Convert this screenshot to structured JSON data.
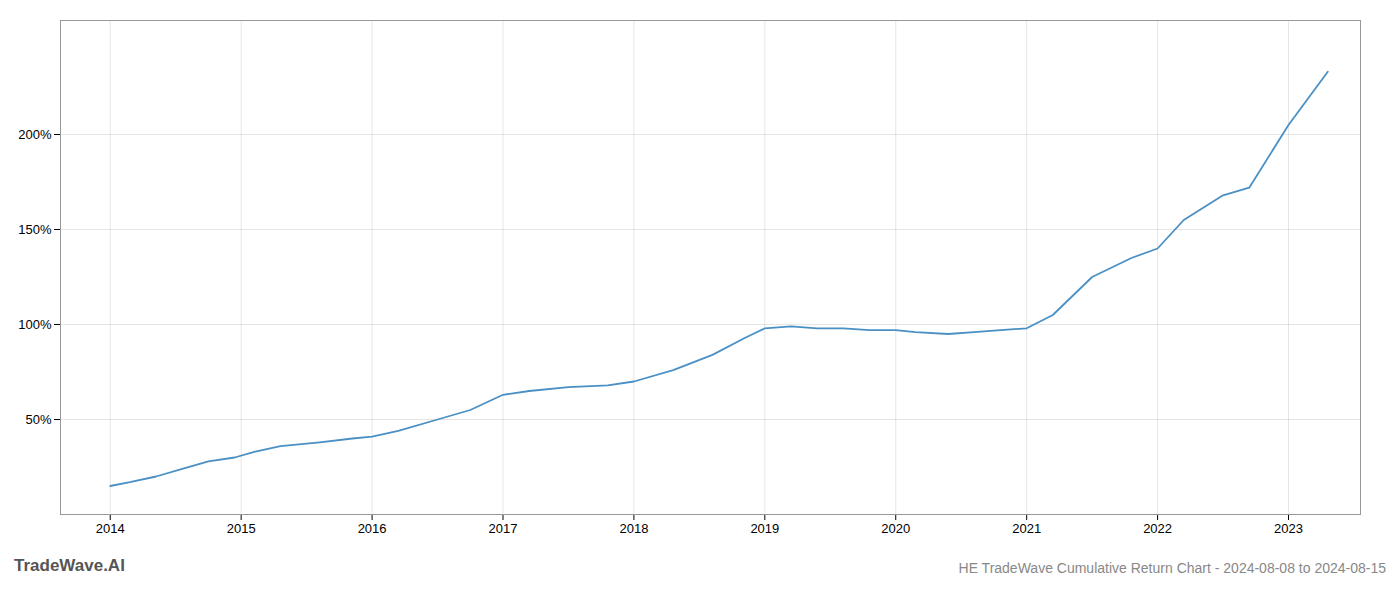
{
  "chart_data": {
    "type": "line",
    "title": "HE TradeWave Cumulative Return Chart - 2024-08-08 to 2024-08-15",
    "annotations": [
      "TradeWave.AI"
    ],
    "x": [
      2014.0,
      2014.15,
      2014.35,
      2014.55,
      2014.75,
      2014.95,
      2015.1,
      2015.3,
      2015.6,
      2015.85,
      2016.0,
      2016.2,
      2016.5,
      2016.75,
      2017.0,
      2017.2,
      2017.5,
      2017.8,
      2018.0,
      2018.3,
      2018.6,
      2018.85,
      2019.0,
      2019.2,
      2019.4,
      2019.6,
      2019.8,
      2020.0,
      2020.15,
      2020.4,
      2020.6,
      2020.8,
      2021.0,
      2021.2,
      2021.5,
      2021.8,
      2022.0,
      2022.2,
      2022.5,
      2022.7,
      2023.0,
      2023.3
    ],
    "values": [
      15,
      17,
      20,
      24,
      28,
      30,
      33,
      36,
      38,
      40,
      41,
      44,
      50,
      55,
      63,
      65,
      67,
      68,
      70,
      76,
      84,
      93,
      98,
      99,
      98,
      98,
      97,
      97,
      96,
      95,
      96,
      97,
      98,
      105,
      125,
      135,
      140,
      155,
      168,
      172,
      205,
      233
    ],
    "color": "#4a90c4",
    "xlim": [
      2013.62,
      2023.55
    ],
    "xticks": [
      2014,
      2015,
      2016,
      2017,
      2018,
      2019,
      2020,
      2021,
      2022,
      2023
    ],
    "ylim": [
      0,
      260
    ],
    "yticks": [
      {
        "value": 50,
        "label": "50%"
      },
      {
        "value": 100,
        "label": "100%"
      },
      {
        "value": 150,
        "label": "150%"
      },
      {
        "value": 200,
        "label": "200%"
      }
    ],
    "grid": true
  }
}
